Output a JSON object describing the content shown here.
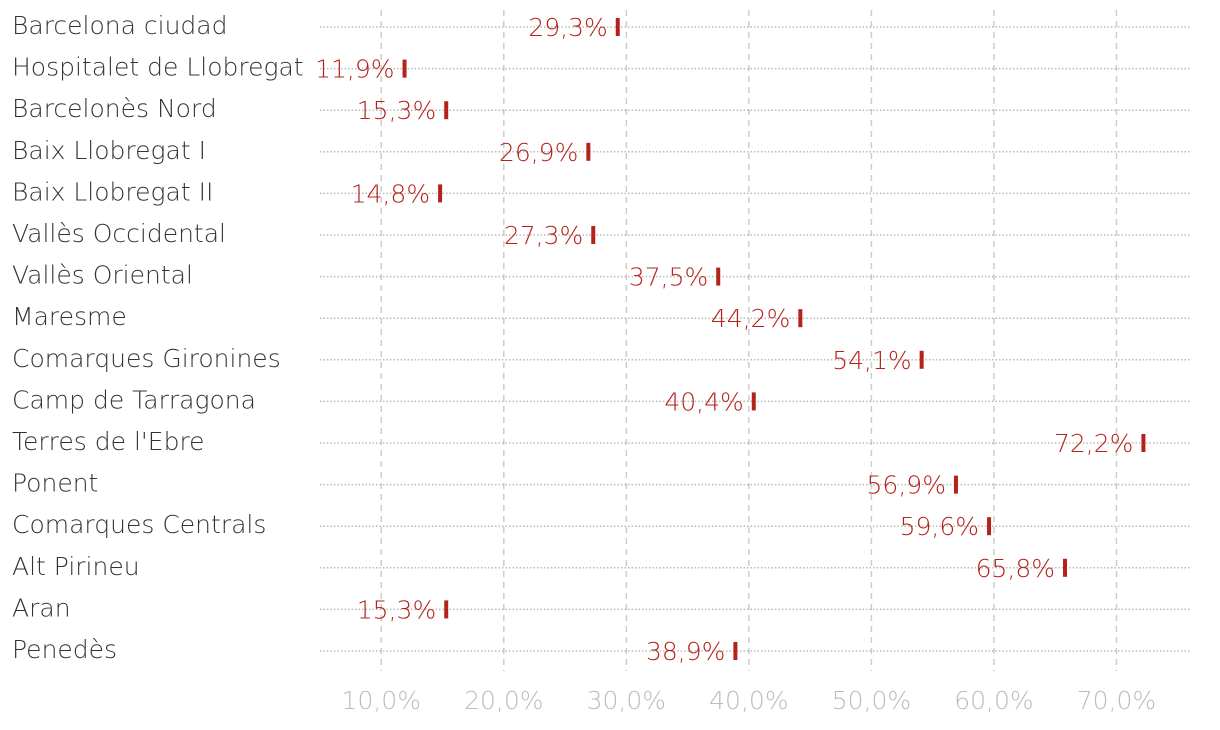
{
  "chart_data": {
    "type": "tick",
    "categories": [
      "Barcelona ciudad",
      "Hospitalet de Llobregat",
      "Barcelonès Nord",
      "Baix Llobregat I",
      "Baix Llobregat II",
      "Vallès Occidental",
      "Vallès Oriental",
      "Maresme",
      "Comarques Gironines",
      "Camp de Tarragona",
      "Terres de l'Ebre",
      "Ponent",
      "Comarques Centrals",
      "Alt Pirineu",
      "Aran",
      "Penedès"
    ],
    "values": [
      29.3,
      11.9,
      15.3,
      26.9,
      14.8,
      27.3,
      37.5,
      44.2,
      54.1,
      40.4,
      72.2,
      56.9,
      59.6,
      65.8,
      15.3,
      38.9
    ],
    "value_labels": [
      "29,3%",
      "11,9%",
      "15,3%",
      "26,9%",
      "14,8%",
      "27,3%",
      "37,5%",
      "44,2%",
      "54,1%",
      "40,4%",
      "72,2%",
      "56,9%",
      "59,6%",
      "65,8%",
      "15,3%",
      "38,9%"
    ],
    "color": "#b5221b",
    "xlim": [
      5,
      76
    ],
    "xticks": [
      {
        "value": 10,
        "label": "10,0%"
      },
      {
        "value": 20,
        "label": "20,0%"
      },
      {
        "value": 30,
        "label": "30,0%"
      },
      {
        "value": 40,
        "label": "40,0%"
      },
      {
        "value": 50,
        "label": "50,0%"
      },
      {
        "value": 60,
        "label": "60,0%"
      },
      {
        "value": 70,
        "label": "70,0%"
      }
    ],
    "grid": true
  }
}
